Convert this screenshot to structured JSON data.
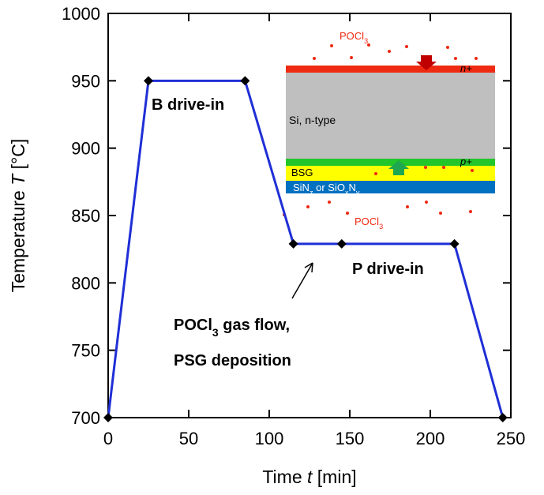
{
  "chart_data": {
    "type": "line",
    "xlabel": [
      "Time ",
      "t",
      " [min]"
    ],
    "ylabel": [
      "Temperature ",
      "T",
      " [°C]"
    ],
    "series": [
      {
        "color": "#1f2fd6",
        "marker_color": "#000000",
        "x": [
          0,
          25,
          85,
          115,
          145,
          215,
          245
        ],
        "values": [
          700,
          950,
          950,
          829,
          829,
          829,
          700
        ]
      }
    ],
    "xlim": [
      0,
      250
    ],
    "xticks": [
      0,
      50,
      100,
      150,
      200,
      250
    ],
    "ylim": [
      700,
      1000
    ],
    "yticks": [
      700,
      750,
      800,
      850,
      900,
      950,
      1000
    ],
    "grid": false,
    "annotations": [
      {
        "parts": [
          "B drive-in"
        ]
      },
      {
        "parts": [
          "P drive-in"
        ]
      },
      {
        "parts": [
          "POCl",
          "3",
          " gas flow,"
        ]
      },
      {
        "parts": [
          "PSG deposition"
        ]
      }
    ],
    "inset": {
      "gas_top": [
        "POCl",
        "3"
      ],
      "gas_bottom": [
        "POCl",
        "3"
      ],
      "n_plus": "n+",
      "si": "Si, n-type",
      "p_plus": "p+",
      "bsg": "BSG",
      "nitride": [
        "SiN",
        "z",
        " or SiO",
        "x",
        "N",
        "y"
      ]
    }
  }
}
